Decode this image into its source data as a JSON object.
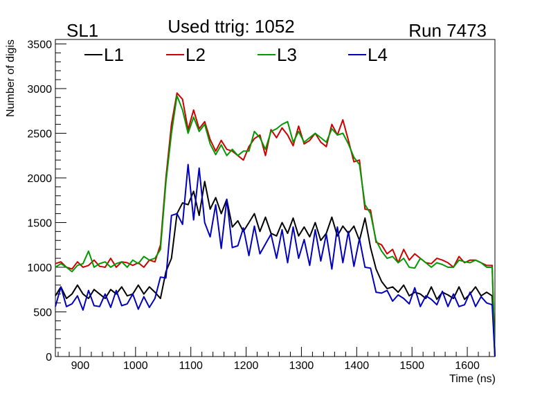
{
  "header": {
    "left": "SL1",
    "center": "Used ttrig: 1052",
    "right": "Run 7473"
  },
  "chart_data": {
    "type": "line",
    "xlabel": "Time (ns)",
    "ylabel": "Number of digis",
    "xlim": [
      855,
      1650
    ],
    "ylim": [
      0,
      3550
    ],
    "xticks": [
      900,
      1000,
      1100,
      1200,
      1300,
      1400,
      1500,
      1600
    ],
    "yticks": [
      0,
      500,
      1000,
      1500,
      2000,
      2500,
      3000,
      3500
    ],
    "grid": false,
    "legend_position": "top",
    "x": [
      855,
      865,
      875,
      885,
      895,
      905,
      915,
      925,
      935,
      945,
      955,
      965,
      975,
      985,
      995,
      1005,
      1015,
      1025,
      1035,
      1045,
      1055,
      1065,
      1075,
      1085,
      1095,
      1105,
      1115,
      1125,
      1135,
      1145,
      1155,
      1165,
      1175,
      1185,
      1195,
      1205,
      1215,
      1225,
      1235,
      1245,
      1255,
      1265,
      1275,
      1285,
      1295,
      1305,
      1315,
      1325,
      1335,
      1345,
      1355,
      1365,
      1375,
      1385,
      1395,
      1405,
      1415,
      1425,
      1435,
      1445,
      1455,
      1465,
      1475,
      1485,
      1495,
      1505,
      1515,
      1525,
      1535,
      1545,
      1555,
      1565,
      1575,
      1585,
      1595,
      1605,
      1615,
      1625,
      1635,
      1645,
      1650
    ],
    "series": [
      {
        "name": "L1",
        "color": "#000000",
        "values": [
          680,
          780,
          650,
          700,
          800,
          700,
          650,
          750,
          700,
          650,
          750,
          700,
          780,
          680,
          700,
          800,
          700,
          780,
          720,
          650,
          950,
          1100,
          1600,
          1720,
          1700,
          1850,
          1580,
          1960,
          1650,
          1780,
          1600,
          1760,
          1450,
          1520,
          1400,
          1500,
          1600,
          1400,
          1560,
          1380,
          1350,
          1500,
          1380,
          1550,
          1350,
          1450,
          1340,
          1500,
          1300,
          1380,
          1560,
          1350,
          1460,
          1380,
          1460,
          1300,
          1550,
          1220,
          980,
          840,
          760,
          780,
          720,
          800,
          680,
          720,
          700,
          650,
          780,
          640,
          720,
          690,
          650,
          780,
          640,
          700,
          780,
          680,
          720,
          680,
          0
        ]
      },
      {
        "name": "L2",
        "color": "#cc0000",
        "values": [
          1040,
          1060,
          1000,
          980,
          1060,
          1000,
          1020,
          1080,
          1010,
          1000,
          1100,
          1000,
          1060,
          1050,
          1020,
          1050,
          1000,
          1080,
          1060,
          1250,
          2000,
          2600,
          2950,
          2880,
          2540,
          2760,
          2550,
          2630,
          2430,
          2300,
          2420,
          2320,
          2300,
          2250,
          2200,
          2350,
          2440,
          2480,
          2250,
          2540,
          2450,
          2560,
          2480,
          2360,
          2580,
          2380,
          2420,
          2500,
          2400,
          2350,
          2600,
          2480,
          2650,
          2420,
          2180,
          2200,
          1650,
          1640,
          1280,
          1250,
          1150,
          1200,
          1050,
          1200,
          1080,
          1150,
          1100,
          1050,
          1040,
          1100,
          1080,
          1050,
          1000,
          1120,
          1050,
          1080,
          1080,
          1050,
          1020,
          1020,
          0
        ]
      },
      {
        "name": "L3",
        "color": "#009900",
        "values": [
          1000,
          1040,
          1000,
          950,
          1020,
          1040,
          1180,
          1000,
          1040,
          1060,
          1000,
          1040,
          1060,
          1000,
          1080,
          1040,
          1120,
          1080,
          1100,
          1200,
          1950,
          2500,
          2920,
          2760,
          2500,
          2680,
          2520,
          2600,
          2380,
          2260,
          2370,
          2250,
          2320,
          2250,
          2300,
          2300,
          2520,
          2450,
          2320,
          2520,
          2550,
          2600,
          2630,
          2400,
          2520,
          2400,
          2450,
          2500,
          2450,
          2400,
          2550,
          2480,
          2500,
          2380,
          2230,
          2150,
          1700,
          1600,
          1300,
          1180,
          1100,
          1120,
          1050,
          1100,
          1000,
          990,
          1100,
          1050,
          1000,
          1050,
          1030,
          1000,
          1000,
          1080,
          1060,
          1050,
          1080,
          1050,
          1000,
          1000,
          0
        ]
      },
      {
        "name": "L4",
        "color": "#0000bb",
        "values": [
          560,
          780,
          560,
          590,
          680,
          520,
          740,
          570,
          560,
          700,
          550,
          740,
          570,
          590,
          700,
          530,
          670,
          550,
          650,
          890,
          880,
          1580,
          1600,
          1480,
          2150,
          1530,
          2110,
          1500,
          1340,
          1700,
          1210,
          1760,
          1220,
          1240,
          1440,
          1130,
          1460,
          1150,
          1260,
          1370,
          1100,
          1420,
          1050,
          1450,
          1100,
          1310,
          1020,
          1420,
          1070,
          1370,
          980,
          1450,
          1050,
          1400,
          1010,
          1320,
          1000,
          990,
          720,
          710,
          740,
          620,
          690,
          650,
          590,
          770,
          560,
          680,
          640,
          580,
          730,
          560,
          700,
          560,
          580,
          720,
          560,
          670,
          600,
          580,
          0
        ]
      }
    ]
  }
}
